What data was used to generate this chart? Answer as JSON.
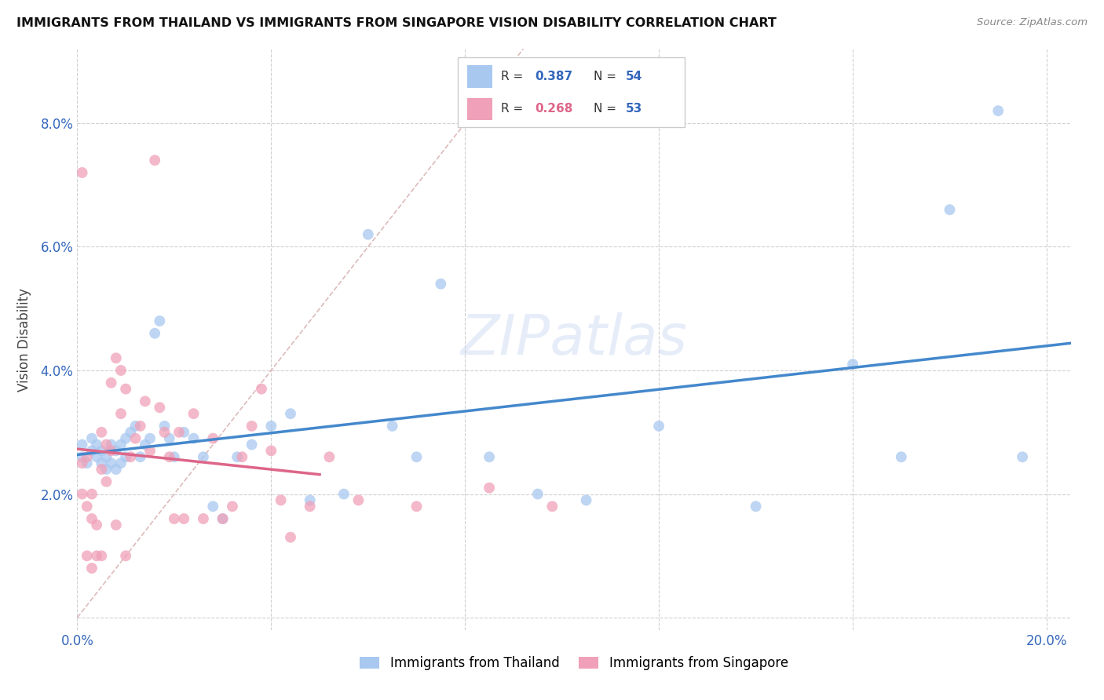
{
  "title": "IMMIGRANTS FROM THAILAND VS IMMIGRANTS FROM SINGAPORE VISION DISABILITY CORRELATION CHART",
  "source": "Source: ZipAtlas.com",
  "ylabel": "Vision Disability",
  "xlim": [
    0.0,
    0.205
  ],
  "ylim": [
    -0.002,
    0.092
  ],
  "xticks": [
    0.0,
    0.04,
    0.08,
    0.12,
    0.16,
    0.2
  ],
  "xtick_labels": [
    "0.0%",
    "",
    "",
    "",
    "",
    "20.0%"
  ],
  "yticks": [
    0.0,
    0.02,
    0.04,
    0.06,
    0.08
  ],
  "ytick_labels": [
    "",
    "2.0%",
    "4.0%",
    "6.0%",
    "8.0%"
  ],
  "background_color": "#ffffff",
  "grid_color": "#d0d0d0",
  "color_thailand": "#a8c8f0",
  "color_singapore": "#f0a0b8",
  "trendline_color_thailand": "#4488cc",
  "trendline_color_singapore": "#dd6688",
  "diagonal_color": "#ddbbbb",
  "thailand_x": [
    0.001,
    0.001,
    0.002,
    0.003,
    0.003,
    0.004,
    0.004,
    0.005,
    0.005,
    0.006,
    0.006,
    0.007,
    0.007,
    0.008,
    0.008,
    0.009,
    0.009,
    0.01,
    0.01,
    0.011,
    0.012,
    0.013,
    0.014,
    0.015,
    0.016,
    0.017,
    0.018,
    0.019,
    0.02,
    0.022,
    0.024,
    0.026,
    0.028,
    0.03,
    0.033,
    0.036,
    0.04,
    0.044,
    0.048,
    0.055,
    0.06,
    0.065,
    0.07,
    0.075,
    0.085,
    0.095,
    0.105,
    0.12,
    0.14,
    0.16,
    0.17,
    0.18,
    0.19,
    0.195
  ],
  "thailand_y": [
    0.026,
    0.028,
    0.025,
    0.027,
    0.029,
    0.026,
    0.028,
    0.025,
    0.027,
    0.024,
    0.026,
    0.025,
    0.028,
    0.024,
    0.027,
    0.025,
    0.028,
    0.026,
    0.029,
    0.03,
    0.031,
    0.026,
    0.028,
    0.029,
    0.046,
    0.048,
    0.031,
    0.029,
    0.026,
    0.03,
    0.029,
    0.026,
    0.018,
    0.016,
    0.026,
    0.028,
    0.031,
    0.033,
    0.019,
    0.02,
    0.062,
    0.031,
    0.026,
    0.054,
    0.026,
    0.02,
    0.019,
    0.031,
    0.018,
    0.041,
    0.026,
    0.066,
    0.082,
    0.026
  ],
  "singapore_x": [
    0.001,
    0.001,
    0.001,
    0.002,
    0.002,
    0.002,
    0.003,
    0.003,
    0.003,
    0.004,
    0.004,
    0.005,
    0.005,
    0.005,
    0.006,
    0.006,
    0.007,
    0.007,
    0.008,
    0.008,
    0.009,
    0.009,
    0.01,
    0.01,
    0.011,
    0.012,
    0.013,
    0.014,
    0.015,
    0.016,
    0.017,
    0.018,
    0.019,
    0.02,
    0.021,
    0.022,
    0.024,
    0.026,
    0.028,
    0.03,
    0.032,
    0.034,
    0.036,
    0.038,
    0.04,
    0.042,
    0.044,
    0.048,
    0.052,
    0.058,
    0.07,
    0.085,
    0.098
  ],
  "singapore_y": [
    0.072,
    0.025,
    0.02,
    0.026,
    0.01,
    0.018,
    0.016,
    0.008,
    0.02,
    0.015,
    0.01,
    0.024,
    0.03,
    0.01,
    0.028,
    0.022,
    0.027,
    0.038,
    0.042,
    0.015,
    0.033,
    0.04,
    0.037,
    0.01,
    0.026,
    0.029,
    0.031,
    0.035,
    0.027,
    0.074,
    0.034,
    0.03,
    0.026,
    0.016,
    0.03,
    0.016,
    0.033,
    0.016,
    0.029,
    0.016,
    0.018,
    0.026,
    0.031,
    0.037,
    0.027,
    0.019,
    0.013,
    0.018,
    0.026,
    0.019,
    0.018,
    0.021,
    0.018
  ]
}
